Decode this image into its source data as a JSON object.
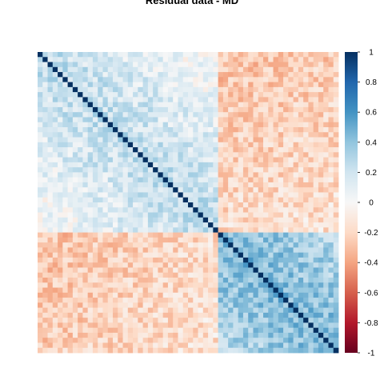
{
  "chart_data": {
    "type": "heatmap",
    "title": "Residual data - MD",
    "subtitle": "",
    "xlabel": "",
    "ylabel": "",
    "n_vars": 60,
    "variable_labels": [],
    "colorbar": {
      "range": [
        -1,
        1
      ],
      "ticks": [
        "1",
        "0.8",
        "0.6",
        "0.4",
        "0.2",
        "0",
        "-0.2",
        "-0.4",
        "-0.6",
        "-0.8",
        "-1"
      ],
      "colors": {
        "neg_strong": "#67001f",
        "neg_mid": "#d6604d",
        "neg_light": "#fddbc7",
        "zero": "#f7f7f7",
        "pos_light": "#d1e5f0",
        "pos_mid": "#4393c3",
        "pos_strong": "#053061"
      }
    },
    "blocks": {
      "group_a_end": 36,
      "group_b_start": 36,
      "within_group_a": 0.25,
      "within_group_b": 0.45,
      "between_groups": -0.35
    },
    "diagonal": 1,
    "legend": "right",
    "grid": false
  }
}
